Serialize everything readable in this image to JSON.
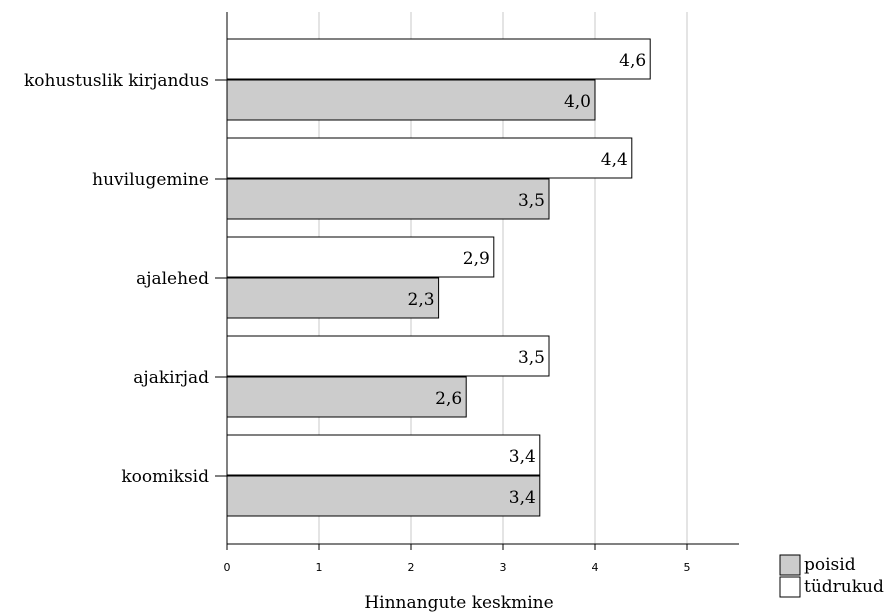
{
  "chart_data": {
    "type": "bar",
    "orientation": "horizontal",
    "categories": [
      "kohustuslik kirjandus",
      "huvilugemine",
      "ajalehed",
      "ajakirjad",
      "koomiksid"
    ],
    "series": [
      {
        "name": "tüdrukud",
        "color": "#ffffff",
        "values": [
          4.6,
          4.4,
          2.9,
          3.5,
          3.4
        ],
        "labels": [
          "4,6",
          "4,4",
          "2,9",
          "3,5",
          "3,4"
        ]
      },
      {
        "name": "poisid",
        "color": "#cccccc",
        "values": [
          4.0,
          3.5,
          2.3,
          2.6,
          3.4
        ],
        "labels": [
          "4,0",
          "3,5",
          "2,3",
          "2,6",
          "3,4"
        ]
      }
    ],
    "xlabel": "Hinnangute keskmine",
    "xlim": [
      0,
      5.28
    ],
    "xticks": [
      "0",
      "1",
      "2",
      "3",
      "4",
      "5"
    ],
    "grid": true,
    "legend": [
      {
        "label": "poisid",
        "color": "#cccccc"
      },
      {
        "label": "tüdrukud",
        "color": "#ffffff"
      }
    ],
    "legend_position": "bottom-right"
  }
}
